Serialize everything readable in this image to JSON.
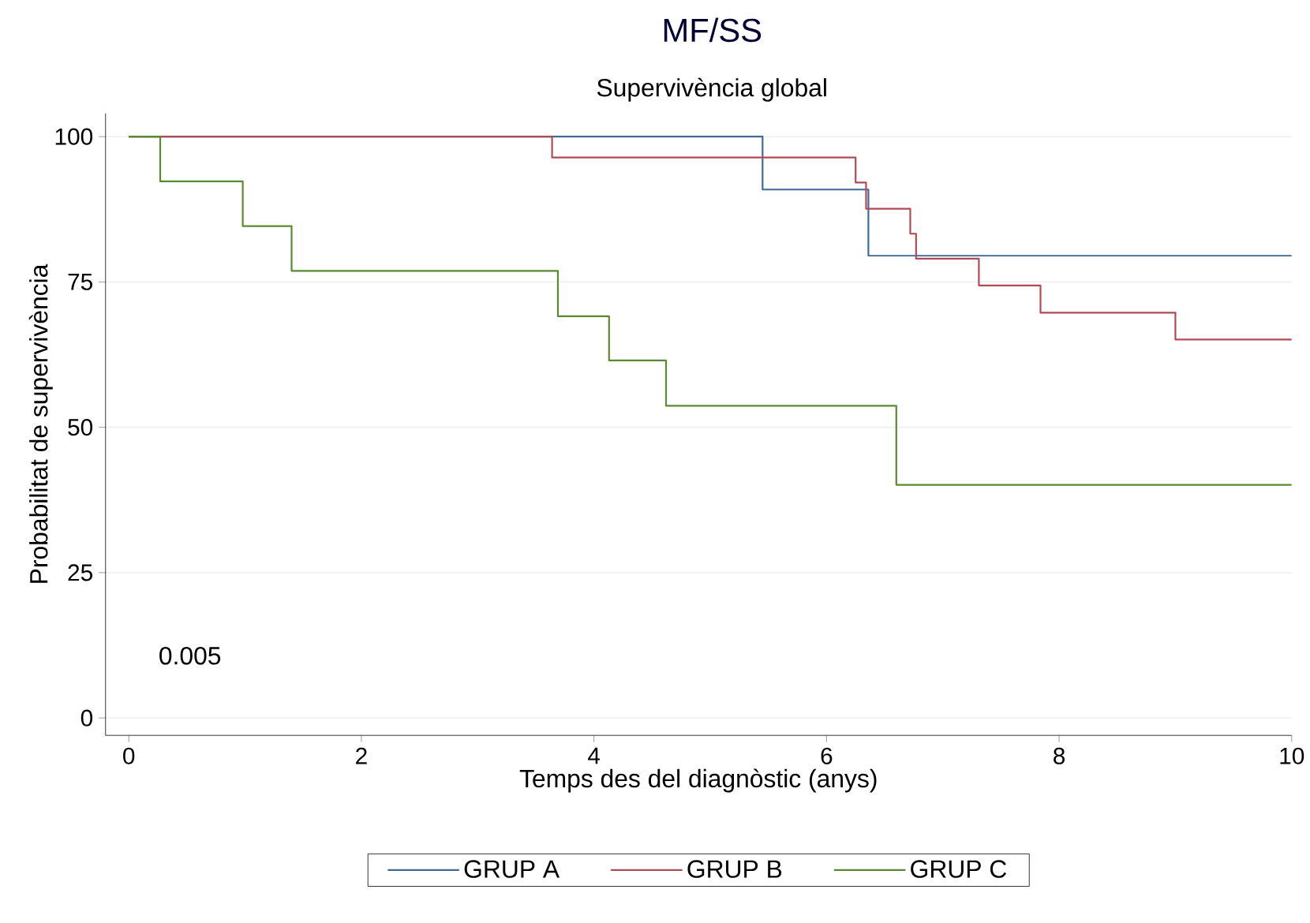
{
  "chart_data": {
    "type": "step",
    "title": "MF/SS",
    "subtitle": "Supervivència global",
    "xlabel": "Temps des del diagnòstic (anys)",
    "ylabel": "Probabilitat de supervivència",
    "xlim": [
      -0.2,
      10
    ],
    "ylim": [
      -3,
      104
    ],
    "xticks": [
      0,
      2,
      4,
      6,
      8,
      10
    ],
    "yticks": [
      0,
      25,
      50,
      75,
      100
    ],
    "grid": "y",
    "legend": "bottom",
    "annotations": [
      "0.005"
    ],
    "series": [
      {
        "name": "GRUP A",
        "color": "#3e6a9a",
        "x": [
          0,
          5.45,
          6.36,
          10
        ],
        "values": [
          100,
          90.9,
          79.5,
          79.5
        ]
      },
      {
        "name": "GRUP B",
        "color": "#b24a55",
        "x": [
          0,
          3.64,
          6.25,
          6.34,
          6.72,
          6.77,
          7.31,
          7.84,
          9.0,
          10
        ],
        "values": [
          100,
          96.4,
          92.1,
          87.6,
          83.3,
          79.0,
          74.4,
          69.7,
          65.1,
          65.1
        ]
      },
      {
        "name": "GRUP C",
        "color": "#5a8a30",
        "x": [
          0,
          0.27,
          0.98,
          1.4,
          3.69,
          4.13,
          4.62,
          6.6,
          10
        ],
        "values": [
          100,
          92.3,
          84.6,
          76.9,
          69.1,
          61.5,
          53.7,
          40.1,
          40.1
        ]
      }
    ]
  }
}
